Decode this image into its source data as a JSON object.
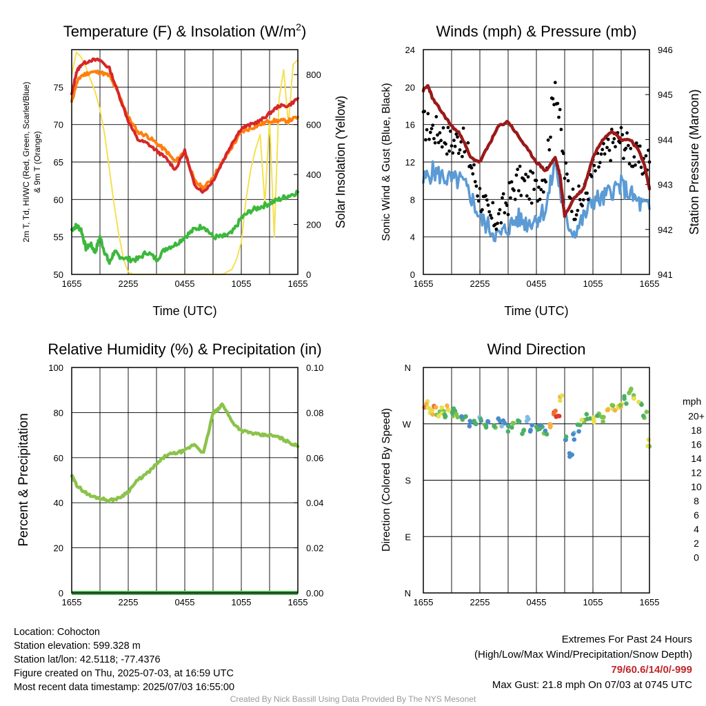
{
  "colors": {
    "temp_red": "#d62728",
    "temp_orange": "#ff7f0e",
    "green": "#3cb83c",
    "insolation": "#f5e050",
    "wind": "#5b9bd5",
    "gust": "#000000",
    "pressure": "#9a1a1a",
    "rh": "#8bc34a",
    "precip": "#4caf50"
  },
  "info": {
    "location": "Location: Cohocton",
    "elevation": "Station elevation: 599.328 m",
    "latlon": "Station lat/lon: 42.5118; -77.4376",
    "created": "Figure created on Thu, 2025-07-03, at 16:59 UTC",
    "recent": "Most recent data timestamp: 2025/07/03 16:55:00"
  },
  "extremes": {
    "title": "Extremes For Past 24 Hours",
    "subtitle": "(High/Low/Max Wind/Precipitation/Snow Depth)",
    "values": "79/60.6/14/0/-999",
    "max_gust": "Max Gust: 21.8 mph On 07/03 at 0745 UTC"
  },
  "credit": "Created By Nick Bassill Using Data Provided By The NYS Mesonet",
  "chart_data": [
    {
      "type": "line",
      "title": "Temperature (F) & Insolation (W/m²)",
      "xlabel": "Time (UTC)",
      "ylabel": "2m T, T_d, HI/WC (Red, Green, Scarlet/Blue) & 9m T (Orange)",
      "ylabel_line1": "2m T, Td, HI/WC (Red, Green, Scarlet/Blue)",
      "ylabel_line2": "& 9m T (Orange)",
      "y2label": "Solar Insolation (Yellow)",
      "x_ticks": [
        "1655",
        "2255",
        "0455",
        "1055",
        "1655"
      ],
      "x_hours": [
        0,
        24
      ],
      "ylim": [
        50,
        80
      ],
      "y_ticks": [
        50,
        55,
        60,
        65,
        70,
        75
      ],
      "y2lim": [
        0,
        900
      ],
      "y2_ticks": [
        0,
        200,
        400,
        600,
        800
      ],
      "grid": true,
      "series": [
        {
          "name": "2m T",
          "color": "#d62728",
          "axis": "left",
          "x": [
            0,
            0.5,
            1,
            2,
            3,
            4,
            5,
            6,
            7,
            8,
            9,
            10,
            11,
            12,
            13,
            14,
            15,
            16,
            17,
            18,
            19,
            20,
            21,
            22,
            23,
            24
          ],
          "y": [
            74,
            77,
            78,
            78.6,
            78.6,
            77.5,
            74,
            70.5,
            68,
            67.5,
            66.5,
            65.5,
            64,
            66.5,
            62,
            61,
            62.5,
            65,
            67.5,
            69.5,
            70,
            70.5,
            71.5,
            72.5,
            72.5,
            73.5
          ]
        },
        {
          "name": "9m T",
          "color": "#ff7f0e",
          "axis": "left",
          "x": [
            0,
            0.5,
            1,
            2,
            3,
            4,
            5,
            6,
            7,
            8,
            9,
            10,
            11,
            12,
            13,
            14,
            15,
            16,
            17,
            18,
            19,
            20,
            21,
            22,
            23,
            24
          ],
          "y": [
            73,
            75.5,
            76.5,
            77,
            77,
            76.5,
            74,
            71,
            69,
            68.5,
            67.5,
            66.5,
            65,
            66.5,
            62.5,
            61.5,
            63,
            65,
            67,
            69,
            69.5,
            70,
            70.5,
            70.5,
            70.5,
            71
          ]
        },
        {
          "name": "2m Td",
          "color": "#3cb83c",
          "axis": "left",
          "x": [
            0,
            0.5,
            1,
            1.5,
            2,
            2.5,
            3,
            3.5,
            4,
            4.5,
            5,
            6,
            7,
            8,
            9,
            10,
            11,
            12,
            13,
            14,
            15,
            16,
            17,
            18,
            19,
            20,
            21,
            22,
            23,
            24
          ],
          "y": [
            56,
            56.5,
            56,
            53.5,
            54,
            53,
            55,
            53,
            51.5,
            53,
            52.5,
            52,
            52,
            53,
            52,
            53.5,
            54,
            55,
            56,
            56.5,
            55,
            55,
            55.5,
            57.5,
            58.5,
            59,
            59.5,
            60,
            60.5,
            61
          ]
        },
        {
          "name": "Solar Insolation",
          "color": "#f5e050",
          "axis": "right",
          "x": [
            0,
            0.5,
            1,
            1.5,
            2,
            2.5,
            3,
            3.5,
            4,
            4.5,
            5,
            5.5,
            6,
            6.5,
            7,
            7.5,
            12,
            16,
            17,
            17.5,
            18,
            18.5,
            19,
            19.5,
            20,
            20.5,
            21,
            21.5,
            22,
            22.5,
            23,
            23.5,
            24
          ],
          "y": [
            800,
            890,
            870,
            830,
            780,
            730,
            660,
            560,
            420,
            280,
            160,
            60,
            10,
            0,
            0,
            0,
            0,
            0,
            20,
            60,
            130,
            300,
            420,
            500,
            560,
            280,
            620,
            150,
            700,
            820,
            600,
            840,
            860
          ]
        }
      ]
    },
    {
      "type": "line",
      "title": "Winds (mph) & Pressure (mb)",
      "xlabel": "Time (UTC)",
      "ylabel": "Sonic Wind & Gust (Blue, Black)",
      "y2label": "Station Pressure (Maroon)",
      "x_ticks": [
        "1655",
        "2255",
        "0455",
        "1055",
        "1655"
      ],
      "ylim": [
        0,
        24
      ],
      "y_ticks": [
        0,
        4,
        8,
        12,
        16,
        20,
        24
      ],
      "y2lim": [
        941,
        946
      ],
      "y2_ticks": [
        941,
        942,
        943,
        944,
        945,
        946
      ],
      "grid": true,
      "series": [
        {
          "name": "Sonic Wind",
          "color": "#5b9bd5",
          "axis": "left",
          "x": [
            0,
            1,
            2,
            3,
            4,
            5,
            6,
            7,
            8,
            9,
            10,
            11,
            12,
            13,
            14,
            15,
            16,
            17,
            18,
            19,
            20,
            21,
            22,
            23,
            24
          ],
          "y": [
            10,
            11,
            10.5,
            10,
            10,
            8.5,
            6,
            5,
            4,
            5,
            6,
            5.5,
            6,
            7,
            12,
            6,
            4.5,
            6,
            8,
            8,
            9,
            9.5,
            8.5,
            7.5,
            7
          ]
        },
        {
          "name": "Gust",
          "color": "#000000",
          "axis": "left",
          "style": "points",
          "x": [
            0,
            1,
            2,
            3,
            4,
            5,
            6,
            7,
            8,
            9,
            10,
            11,
            12,
            13,
            14,
            15,
            16,
            17,
            18,
            19,
            20,
            21,
            22,
            23,
            24
          ],
          "y": [
            16,
            15.5,
            15,
            14,
            14.5,
            12,
            8.5,
            6,
            6,
            8,
            10,
            9.5,
            9,
            11,
            21,
            11,
            7.5,
            8,
            11,
            12.5,
            14,
            14.5,
            13,
            12,
            12
          ]
        },
        {
          "name": "Station Pressure",
          "color": "#9a1a1a",
          "axis": "right",
          "x": [
            0,
            0.5,
            1,
            2,
            3,
            4,
            5,
            6,
            7,
            8,
            9,
            10,
            11,
            12,
            13,
            14,
            14.5,
            15,
            16,
            17,
            18,
            19,
            20,
            21,
            22,
            23,
            23.5,
            24
          ],
          "y": [
            945.1,
            945.2,
            944.9,
            944.6,
            944.3,
            944.1,
            943.6,
            943.5,
            943.9,
            944.3,
            944.4,
            944.1,
            943.8,
            943.5,
            943.3,
            943.6,
            943.2,
            942.3,
            942.7,
            942.9,
            943.6,
            944.0,
            944.2,
            944.0,
            944.0,
            943.7,
            943.4,
            942.9
          ]
        }
      ]
    },
    {
      "type": "line",
      "title": "Relative Humidity (%) & Precipitation (in)",
      "xlabel": "",
      "ylabel": "Percent & Precipitation",
      "x_ticks": [
        "1655",
        "2255",
        "0455",
        "1055",
        "1655"
      ],
      "ylim": [
        0,
        100
      ],
      "y_ticks": [
        0,
        20,
        40,
        60,
        80,
        100
      ],
      "y2lim": [
        0,
        0.1
      ],
      "y2_ticks": [
        "0.00",
        "0.02",
        "0.04",
        "0.06",
        "0.08",
        "0.10"
      ],
      "grid": true,
      "series": [
        {
          "name": "Relative Humidity",
          "color": "#8bc34a",
          "axis": "left",
          "x": [
            0,
            0.5,
            1,
            2,
            3,
            4,
            5,
            6,
            7,
            8,
            9,
            10,
            11,
            12,
            13,
            14,
            15,
            15.5,
            16,
            17,
            18,
            19,
            20,
            21,
            22,
            23,
            24
          ],
          "y": [
            52,
            48,
            46,
            43,
            42,
            41,
            42,
            45,
            50,
            53,
            57,
            61,
            62,
            63,
            66,
            62,
            80,
            81,
            84,
            76,
            72,
            71,
            70,
            70,
            69,
            67,
            65
          ]
        },
        {
          "name": "Precipitation",
          "color": "#4caf50",
          "axis": "right",
          "x": [
            0,
            24
          ],
          "y": [
            0,
            0
          ]
        }
      ]
    },
    {
      "type": "scatter",
      "title": "Wind Direction",
      "xlabel": "",
      "ylabel": "Direction (Colored By Speed)",
      "x_ticks": [
        "1655",
        "2255",
        "0455",
        "1055",
        "1655"
      ],
      "y_ticks": [
        "N",
        "E",
        "S",
        "W",
        "N"
      ],
      "y_tick_degrees": [
        0,
        90,
        180,
        270,
        360
      ],
      "ylim": [
        0,
        360
      ],
      "grid": true,
      "colorbar": {
        "title": "mph",
        "labels": [
          "0",
          "2",
          "4",
          "6",
          "8",
          "10",
          "12",
          "14",
          "16",
          "18",
          "20+"
        ],
        "colors": [
          "#c6e9fa",
          "#7fbde6",
          "#4a8ac9",
          "#4caf68",
          "#7cc24e",
          "#e6e04f",
          "#f7b046",
          "#f07030",
          "#e0382a",
          "#c42026",
          "#961b1b"
        ]
      },
      "points": {
        "x": [
          0.3,
          0.6,
          1.0,
          1.3,
          1.6,
          2.0,
          2.3,
          2.6,
          3.0,
          3.3,
          3.6,
          4.0,
          4.5,
          5.0,
          5.5,
          6.0,
          6.5,
          7.0,
          7.5,
          8.0,
          8.5,
          9.0,
          9.5,
          10.0,
          10.5,
          11.0,
          11.5,
          12.0,
          12.5,
          13.0,
          13.5,
          14.0,
          14.3,
          14.6,
          15.2,
          15.6,
          16.0,
          16.5,
          17.0,
          17.5,
          18.0,
          18.5,
          19.0,
          19.5,
          20.0,
          20.5,
          21.0,
          21.5,
          22.0,
          22.5,
          23.0,
          23.5,
          24.0
        ],
        "dir": [
          300,
          292,
          288,
          296,
          285,
          290,
          280,
          295,
          282,
          290,
          284,
          278,
          283,
          270,
          275,
          278,
          265,
          272,
          268,
          275,
          270,
          262,
          266,
          270,
          258,
          276,
          262,
          262,
          266,
          258,
          270,
          288,
          284,
          310,
          248,
          218,
          250,
          263,
          272,
          280,
          276,
          282,
          278,
          290,
          298,
          293,
          302,
          308,
          320,
          310,
          300,
          285,
          240
        ],
        "speed": [
          12,
          10,
          11,
          13,
          9,
          10,
          8,
          11,
          7,
          6,
          9,
          5,
          6,
          4,
          5,
          4,
          7,
          4,
          6,
          5,
          4,
          6,
          7,
          5,
          7,
          3,
          4,
          6,
          5,
          6,
          12,
          14,
          16,
          10,
          4,
          4,
          3,
          5,
          8,
          6,
          9,
          7,
          8,
          10,
          9,
          11,
          10,
          6,
          7,
          9,
          8,
          7,
          10
        ]
      }
    }
  ]
}
